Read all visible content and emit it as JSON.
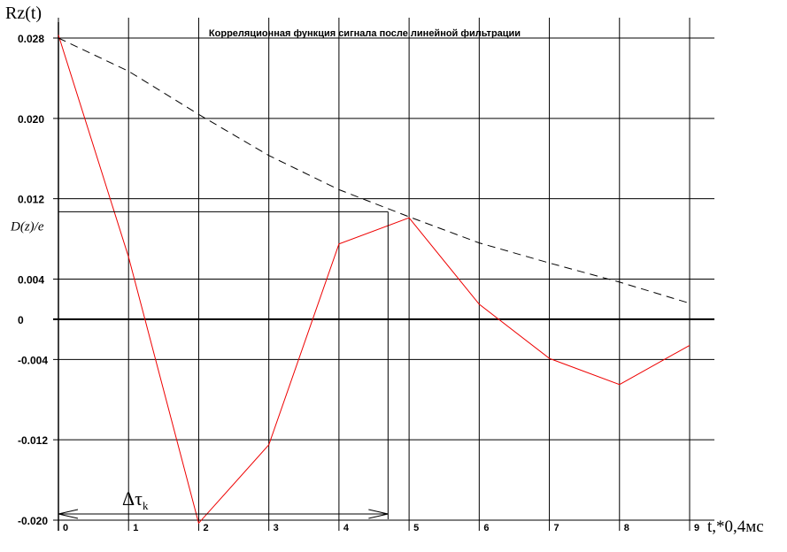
{
  "chart_data": {
    "type": "line",
    "title": "Корреляционная функция сигнала после линейной фильтрации",
    "ylabel": "Rz(t)",
    "xlabel": "t,*0,4мс",
    "x": [
      0,
      1,
      2,
      3,
      4,
      5,
      6,
      7,
      8,
      9
    ],
    "xlim": [
      0,
      9
    ],
    "ylim": [
      -0.02,
      0.028
    ],
    "y_ticks": [
      {
        "value": 0.028,
        "label": "0.028"
      },
      {
        "value": 0.02,
        "label": "0.020"
      },
      {
        "value": 0.012,
        "label": "0.012"
      },
      {
        "value": 0.004,
        "label": "0.004"
      },
      {
        "value": 0,
        "label": "0"
      },
      {
        "value": -0.004,
        "label": "-0.004"
      },
      {
        "value": -0.012,
        "label": "-0.012"
      },
      {
        "value": -0.02,
        "label": "-0.020"
      }
    ],
    "x_tick_labels": [
      "0",
      "1",
      "2",
      "3",
      "4",
      "5",
      "6",
      "7",
      "8",
      "9"
    ],
    "grid": true,
    "series": [
      {
        "style": "solid",
        "color": "#ee0000",
        "values": [
          0.0283,
          0.0062,
          -0.0203,
          -0.0125,
          0.0075,
          0.0101,
          0.0015,
          -0.0039,
          -0.0065,
          -0.0026
        ]
      },
      {
        "style": "dashed",
        "color": "#000000",
        "values": [
          0.028,
          0.0247,
          0.0204,
          0.0163,
          0.0129,
          0.0102,
          0.0076,
          0.0056,
          0.0037,
          0.0016
        ]
      }
    ],
    "annotations": {
      "level_label": "D(z)/e",
      "level_value": 0.0107,
      "interval_symbol": "Δτ",
      "interval_subscript": "k",
      "interval_end_x": 4.7
    }
  }
}
